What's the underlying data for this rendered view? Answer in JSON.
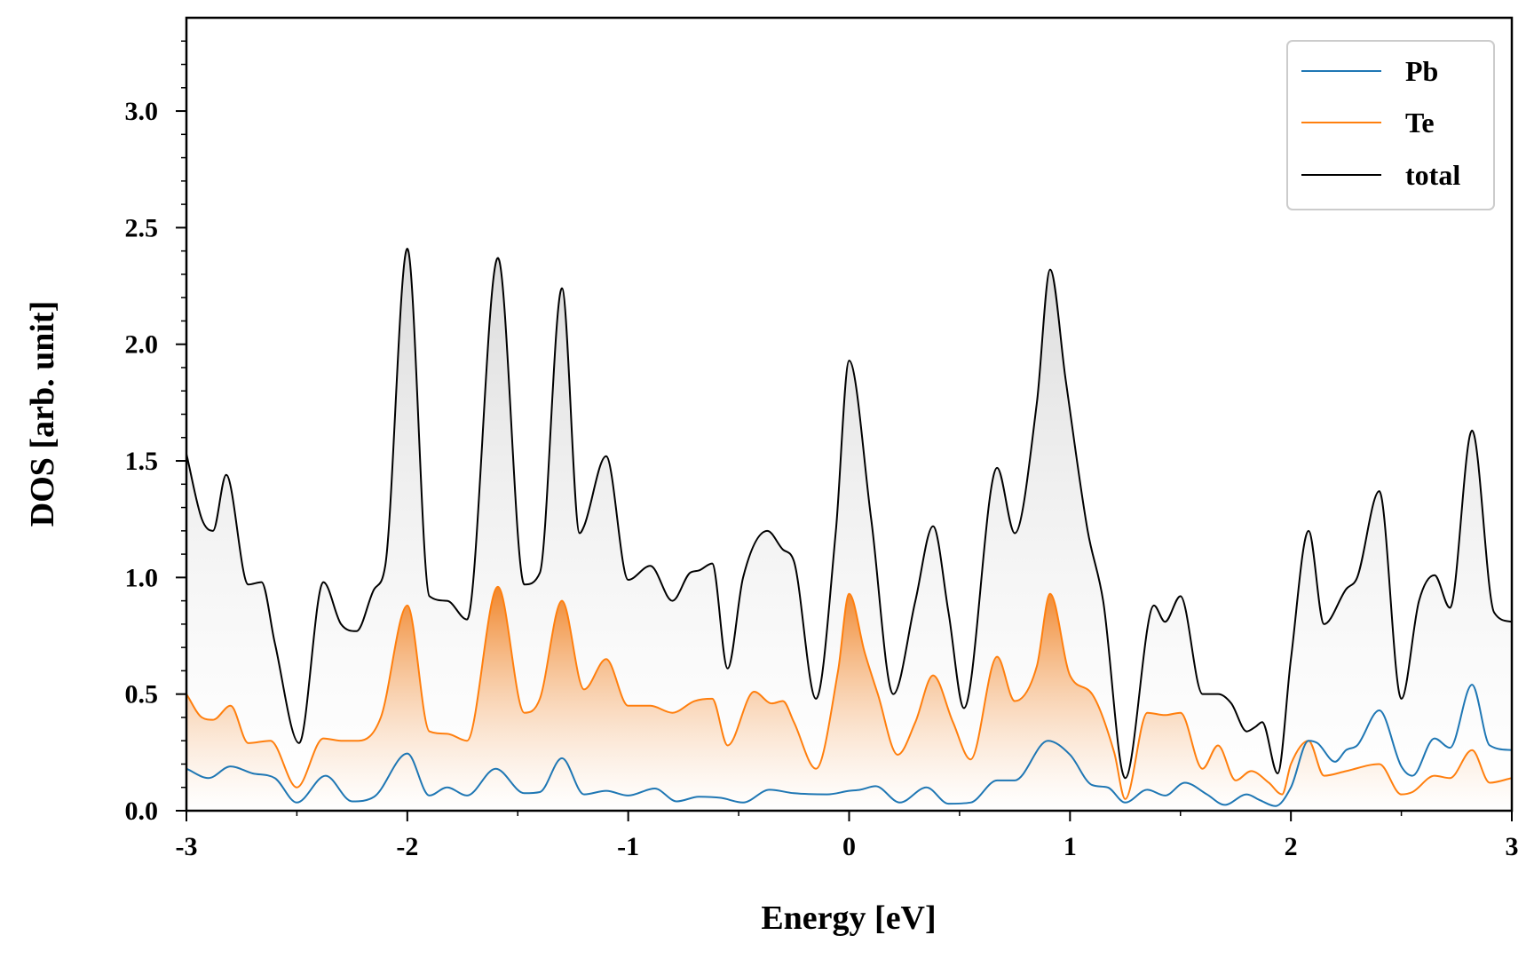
{
  "chart_data": {
    "type": "area",
    "xlabel": "Energy [eV]",
    "ylabel": "DOS [arb. unit]",
    "xlim": [
      -3,
      3
    ],
    "ylim": [
      0,
      3.4
    ],
    "xticks": [
      -3,
      -2,
      -1,
      0,
      1,
      2,
      3
    ],
    "xtick_labels": [
      "-3",
      "-2",
      "-1",
      "0",
      "1",
      "2",
      "3"
    ],
    "yticks": [
      0,
      0.5,
      1.0,
      1.5,
      2.0,
      2.5,
      3.0
    ],
    "ytick_labels": [
      "0.0",
      "0.5",
      "1.0",
      "1.5",
      "2.0",
      "2.5",
      "3.0"
    ],
    "legend_position": "top-right",
    "series": [
      {
        "name": "Pb",
        "color": "#1f77b4",
        "fill": false,
        "x": [
          -3.0,
          -2.9,
          -2.8,
          -2.7,
          -2.6,
          -2.5,
          -2.37,
          -2.25,
          -2.15,
          -2.0,
          -1.9,
          -1.82,
          -1.73,
          -1.6,
          -1.47,
          -1.4,
          -1.3,
          -1.2,
          -1.1,
          -1.0,
          -0.88,
          -0.78,
          -0.68,
          -0.58,
          -0.48,
          -0.36,
          -0.25,
          -0.1,
          0.0,
          0.05,
          0.12,
          0.23,
          0.35,
          0.45,
          0.55,
          0.67,
          0.75,
          0.9,
          1.0,
          1.1,
          1.17,
          1.25,
          1.35,
          1.43,
          1.52,
          1.62,
          1.7,
          1.8,
          1.86,
          1.93,
          2.0,
          2.08,
          2.12,
          2.2,
          2.25,
          2.3,
          2.4,
          2.5,
          2.55,
          2.65,
          2.72,
          2.82,
          2.9,
          3.0
        ],
        "values": [
          0.18,
          0.14,
          0.19,
          0.16,
          0.14,
          0.035,
          0.15,
          0.04,
          0.06,
          0.245,
          0.065,
          0.1,
          0.065,
          0.18,
          0.075,
          0.08,
          0.225,
          0.07,
          0.085,
          0.065,
          0.095,
          0.04,
          0.06,
          0.055,
          0.035,
          0.09,
          0.075,
          0.07,
          0.085,
          0.09,
          0.105,
          0.035,
          0.1,
          0.03,
          0.035,
          0.13,
          0.13,
          0.3,
          0.24,
          0.11,
          0.1,
          0.035,
          0.09,
          0.065,
          0.12,
          0.07,
          0.025,
          0.07,
          0.045,
          0.02,
          0.1,
          0.3,
          0.29,
          0.21,
          0.26,
          0.28,
          0.43,
          0.19,
          0.15,
          0.31,
          0.27,
          0.54,
          0.28,
          0.26
        ]
      },
      {
        "name": "Te",
        "color": "#ff7f0e",
        "fill": true,
        "x": [
          -3.0,
          -2.93,
          -2.88,
          -2.8,
          -2.72,
          -2.62,
          -2.5,
          -2.38,
          -2.3,
          -2.22,
          -2.12,
          -2.0,
          -1.9,
          -1.82,
          -1.73,
          -1.59,
          -1.47,
          -1.4,
          -1.3,
          -1.2,
          -1.1,
          -1.0,
          -0.9,
          -0.8,
          -0.7,
          -0.62,
          -0.55,
          -0.43,
          -0.35,
          -0.3,
          -0.25,
          -0.15,
          -0.05,
          0.0,
          0.07,
          0.13,
          0.22,
          0.3,
          0.38,
          0.47,
          0.55,
          0.67,
          0.75,
          0.85,
          0.91,
          1.0,
          1.1,
          1.2,
          1.25,
          1.35,
          1.43,
          1.5,
          1.6,
          1.67,
          1.75,
          1.82,
          1.9,
          1.96,
          2.0,
          2.08,
          2.15,
          2.25,
          2.4,
          2.5,
          2.55,
          2.65,
          2.72,
          2.82,
          2.9,
          3.0
        ],
        "values": [
          0.5,
          0.4,
          0.39,
          0.45,
          0.29,
          0.3,
          0.1,
          0.31,
          0.3,
          0.3,
          0.4,
          0.88,
          0.34,
          0.33,
          0.3,
          0.96,
          0.42,
          0.48,
          0.9,
          0.52,
          0.65,
          0.45,
          0.45,
          0.42,
          0.47,
          0.48,
          0.28,
          0.51,
          0.46,
          0.47,
          0.38,
          0.18,
          0.6,
          0.93,
          0.68,
          0.5,
          0.24,
          0.38,
          0.58,
          0.38,
          0.22,
          0.66,
          0.47,
          0.62,
          0.93,
          0.58,
          0.5,
          0.25,
          0.05,
          0.42,
          0.41,
          0.42,
          0.18,
          0.28,
          0.13,
          0.17,
          0.12,
          0.07,
          0.2,
          0.3,
          0.15,
          0.17,
          0.2,
          0.07,
          0.08,
          0.15,
          0.14,
          0.26,
          0.12,
          0.14
        ]
      },
      {
        "name": "total",
        "color": "#000000",
        "fill": true,
        "x": [
          -3.0,
          -2.93,
          -2.88,
          -2.82,
          -2.72,
          -2.66,
          -2.6,
          -2.49,
          -2.38,
          -2.3,
          -2.23,
          -2.15,
          -2.1,
          -2.0,
          -1.9,
          -1.82,
          -1.73,
          -1.59,
          -1.47,
          -1.4,
          -1.3,
          -1.22,
          -1.2,
          -1.1,
          -1.0,
          -0.9,
          -0.8,
          -0.72,
          -0.68,
          -0.62,
          -0.55,
          -0.48,
          -0.37,
          -0.3,
          -0.25,
          -0.15,
          -0.06,
          0.0,
          0.1,
          0.2,
          0.3,
          0.38,
          0.45,
          0.52,
          0.67,
          0.75,
          0.85,
          0.91,
          0.98,
          1.08,
          1.15,
          1.25,
          1.38,
          1.43,
          1.5,
          1.6,
          1.67,
          1.73,
          1.8,
          1.84,
          1.87,
          1.94,
          2.0,
          2.08,
          2.15,
          2.25,
          2.3,
          2.4,
          2.5,
          2.58,
          2.65,
          2.72,
          2.82,
          2.92,
          3.0
        ],
        "values": [
          1.53,
          1.25,
          1.2,
          1.44,
          0.97,
          0.98,
          0.72,
          0.29,
          0.98,
          0.8,
          0.77,
          0.95,
          1.05,
          2.41,
          0.92,
          0.9,
          0.82,
          2.37,
          0.97,
          1.02,
          2.24,
          1.19,
          1.22,
          1.52,
          0.99,
          1.05,
          0.9,
          1.02,
          1.03,
          1.06,
          0.61,
          1.0,
          1.2,
          1.12,
          1.07,
          0.48,
          1.2,
          1.93,
          1.25,
          0.5,
          0.9,
          1.22,
          0.85,
          0.44,
          1.47,
          1.19,
          1.75,
          2.32,
          1.85,
          1.2,
          0.9,
          0.14,
          0.88,
          0.81,
          0.92,
          0.5,
          0.5,
          0.46,
          0.34,
          0.36,
          0.38,
          0.16,
          0.65,
          1.2,
          0.8,
          0.95,
          1.0,
          1.37,
          0.48,
          0.9,
          1.01,
          0.87,
          1.63,
          0.85,
          0.81
        ]
      }
    ]
  }
}
